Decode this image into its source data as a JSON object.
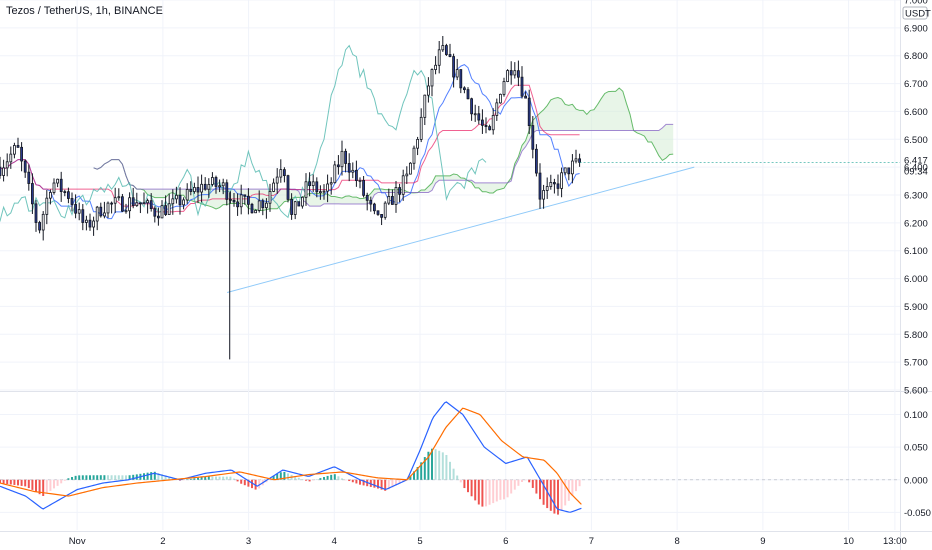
{
  "header": {
    "title": "Tezos / TetherUS, 1h, BINANCE",
    "currency": "USDT"
  },
  "current_price": {
    "value": "6.417",
    "countdown": "09:34"
  },
  "colors": {
    "up": "#26a69a",
    "down": "#ef5350",
    "candle": "#131722",
    "background": "#ffffff",
    "grid": "#f0f3fa",
    "cloud_up": "#d5ecd6",
    "cloud_edge": "#66bb6a",
    "conversion": "#2962ff",
    "base": "#e91e63",
    "lagging": "#4db6ac",
    "ma_purple": "#7e57c2",
    "trendline": "#90caf9",
    "macd": "#2962ff",
    "signal": "#ff6d00"
  },
  "chart_data": [
    {
      "type": "candlestick",
      "name": "price",
      "ylim": [
        5.6,
        7.0
      ],
      "y_ticks": [
        "5.600",
        "5.700",
        "5.800",
        "5.900",
        "6.000",
        "6.100",
        "6.200",
        "6.300",
        "6.400",
        "6.500",
        "6.600",
        "6.700",
        "6.800",
        "6.900",
        "7.000"
      ],
      "x_ticks": [
        "Nov",
        "2",
        "3",
        "4",
        "5",
        "6",
        "7",
        "8",
        "9",
        "10",
        "13:00"
      ],
      "x_tick_days": [
        1,
        2,
        3,
        4,
        5,
        6,
        7,
        8,
        9,
        10,
        10.54
      ],
      "x_range_days": [
        0.1,
        10.6
      ],
      "ohlc_keypoints": [
        [
          0.1,
          6.4
        ],
        [
          0.3,
          6.47
        ],
        [
          0.45,
          6.3
        ],
        [
          0.55,
          6.17
        ],
        [
          0.7,
          6.35
        ],
        [
          0.9,
          6.3
        ],
        [
          1.1,
          6.18
        ],
        [
          1.3,
          6.26
        ],
        [
          1.5,
          6.27
        ],
        [
          1.7,
          6.28
        ],
        [
          1.9,
          6.24
        ],
        [
          2.1,
          6.26
        ],
        [
          2.3,
          6.3
        ],
        [
          2.5,
          6.34
        ],
        [
          2.7,
          6.33
        ],
        [
          2.78,
          6.3
        ],
        [
          3.0,
          6.26
        ],
        [
          3.2,
          6.28
        ],
        [
          3.4,
          6.43
        ],
        [
          3.5,
          6.22
        ],
        [
          3.7,
          6.34
        ],
        [
          3.9,
          6.3
        ],
        [
          4.1,
          6.45
        ],
        [
          4.3,
          6.33
        ],
        [
          4.5,
          6.2
        ],
        [
          4.7,
          6.3
        ],
        [
          4.85,
          6.36
        ],
        [
          5.0,
          6.55
        ],
        [
          5.1,
          6.7
        ],
        [
          5.25,
          6.82
        ],
        [
          5.45,
          6.72
        ],
        [
          5.6,
          6.62
        ],
        [
          5.8,
          6.5
        ],
        [
          5.95,
          6.7
        ],
        [
          6.1,
          6.78
        ],
        [
          6.25,
          6.62
        ],
        [
          6.4,
          6.3
        ],
        [
          6.55,
          6.32
        ],
        [
          6.75,
          6.4
        ],
        [
          6.9,
          6.417
        ]
      ],
      "annotations": [
        {
          "type": "wick",
          "x_day": 2.78,
          "low": 5.71,
          "high": 6.31
        },
        {
          "type": "trendline",
          "from": [
            2.75,
            5.95
          ],
          "to": [
            8.2,
            6.4
          ]
        },
        {
          "type": "ichimoku_cloud"
        },
        {
          "type": "last_price",
          "value": 6.417,
          "label": "6.417",
          "countdown": "09:34"
        }
      ]
    },
    {
      "type": "bar",
      "name": "MACD",
      "ylim": [
        -0.077,
        0.133
      ],
      "y_ticks": [
        "0.100",
        "0.050",
        "0.000",
        "-0.050"
      ],
      "macd_keypoints": [
        [
          0.1,
          -0.01
        ],
        [
          0.4,
          -0.025
        ],
        [
          0.6,
          -0.045
        ],
        [
          0.8,
          -0.03
        ],
        [
          1.0,
          -0.015
        ],
        [
          1.3,
          -0.005
        ],
        [
          1.6,
          0.0
        ],
        [
          1.9,
          0.01
        ],
        [
          2.2,
          0.0
        ],
        [
          2.5,
          0.01
        ],
        [
          2.8,
          0.015
        ],
        [
          3.1,
          -0.01
        ],
        [
          3.4,
          0.015
        ],
        [
          3.7,
          0.005
        ],
        [
          4.0,
          0.02
        ],
        [
          4.3,
          0.0
        ],
        [
          4.6,
          -0.015
        ],
        [
          4.85,
          0.0
        ],
        [
          5.0,
          0.045
        ],
        [
          5.15,
          0.095
        ],
        [
          5.3,
          0.12
        ],
        [
          5.5,
          0.1
        ],
        [
          5.75,
          0.05
        ],
        [
          6.0,
          0.025
        ],
        [
          6.25,
          0.035
        ],
        [
          6.45,
          -0.01
        ],
        [
          6.6,
          -0.045
        ],
        [
          6.75,
          -0.05
        ],
        [
          6.9,
          -0.043
        ]
      ],
      "signal_keypoints": [
        [
          0.1,
          -0.005
        ],
        [
          0.5,
          -0.018
        ],
        [
          0.9,
          -0.025
        ],
        [
          1.3,
          -0.012
        ],
        [
          1.7,
          -0.005
        ],
        [
          2.1,
          0.0
        ],
        [
          2.5,
          0.005
        ],
        [
          2.9,
          0.012
        ],
        [
          3.3,
          0.0
        ],
        [
          3.7,
          0.008
        ],
        [
          4.1,
          0.012
        ],
        [
          4.5,
          0.003
        ],
        [
          4.85,
          0.0
        ],
        [
          5.1,
          0.035
        ],
        [
          5.3,
          0.08
        ],
        [
          5.5,
          0.11
        ],
        [
          5.7,
          0.1
        ],
        [
          5.95,
          0.06
        ],
        [
          6.2,
          0.035
        ],
        [
          6.45,
          0.03
        ],
        [
          6.6,
          0.01
        ],
        [
          6.75,
          -0.02
        ],
        [
          6.9,
          -0.04
        ]
      ]
    }
  ]
}
